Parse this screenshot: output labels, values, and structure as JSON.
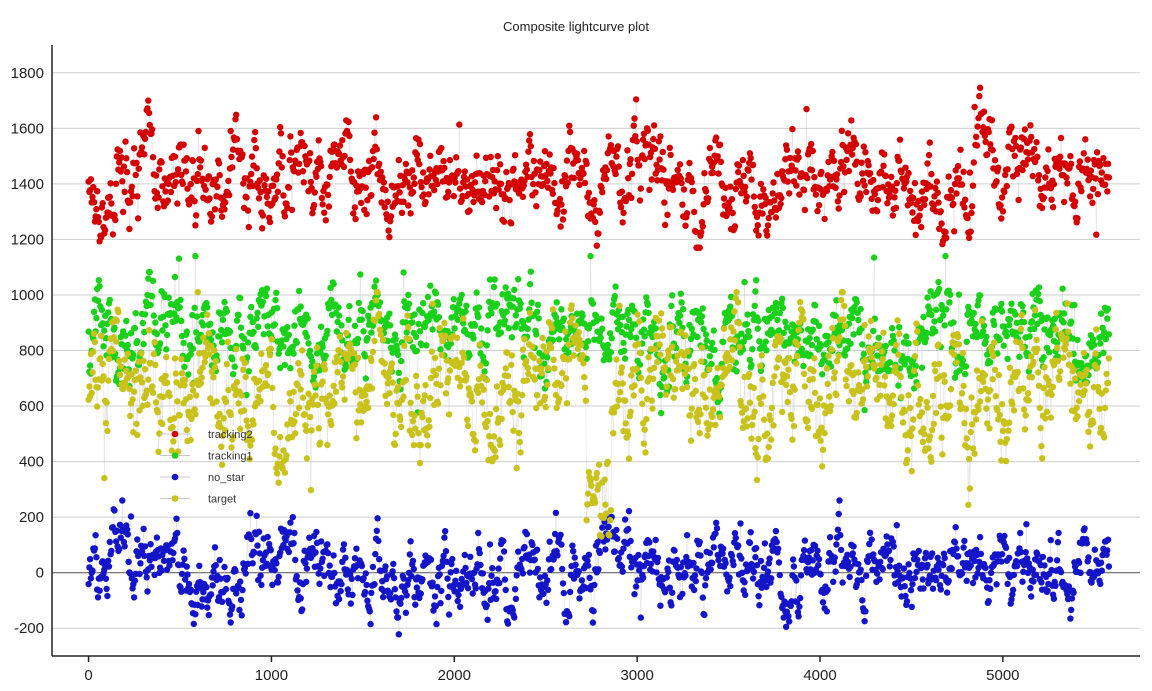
{
  "chart_data": {
    "type": "scatter",
    "title": "Composite lightcurve plot",
    "xlabel": "",
    "ylabel": "",
    "xlim": [
      -200,
      5750
    ],
    "ylim": [
      -300,
      1900
    ],
    "xticks": [
      0,
      1000,
      2000,
      3000,
      4000,
      5000
    ],
    "yticks": [
      -200,
      0,
      200,
      400,
      600,
      800,
      1000,
      1200,
      1400,
      1600,
      1800
    ],
    "grid": "horizontal",
    "legend_position": "left",
    "series": [
      {
        "name": "tracking2",
        "color": "#d40000",
        "marker": "circle",
        "approx_mean": 1430,
        "approx_range": [
          1170,
          1820
        ],
        "approx_count": 1300,
        "x_range": [
          0,
          5580
        ]
      },
      {
        "name": "tracking1",
        "color": "#19d119",
        "marker": "circle",
        "approx_mean": 870,
        "approx_range": [
          520,
          1140
        ],
        "approx_count": 1300,
        "x_range": [
          0,
          5580
        ]
      },
      {
        "name": "no_star",
        "color": "#1414c8",
        "marker": "circle",
        "approx_mean": 10,
        "approx_range": [
          -290,
          260
        ],
        "approx_count": 1300,
        "x_range": [
          0,
          5580
        ]
      },
      {
        "name": "target",
        "color": "#c9c21b",
        "marker": "circle",
        "approx_mean": 680,
        "approx_range": [
          100,
          1010
        ],
        "approx_count": 1300,
        "x_range": [
          0,
          5580
        ]
      }
    ]
  }
}
